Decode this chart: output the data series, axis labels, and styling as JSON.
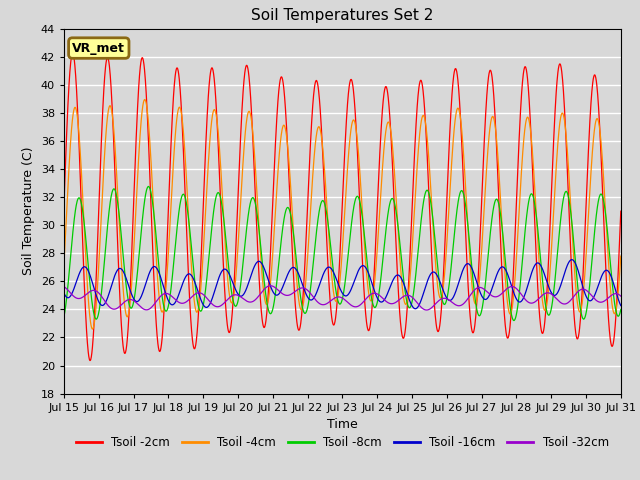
{
  "title": "Soil Temperatures Set 2",
  "xlabel": "Time",
  "ylabel": "Soil Temperature (C)",
  "ylim": [
    18,
    44
  ],
  "yticks": [
    18,
    20,
    22,
    24,
    26,
    28,
    30,
    32,
    34,
    36,
    38,
    40,
    42,
    44
  ],
  "bg_color": "#d8d8d8",
  "plot_bg_color": "#d8d8d8",
  "grid_color": "#ffffff",
  "annotation_text": "VR_met",
  "annotation_bg": "#ffff99",
  "annotation_border": "#8b6914",
  "series": [
    {
      "label": "Tsoil -2cm",
      "color": "#ff0000",
      "amplitude": 11.0,
      "mean": 31.5,
      "phase": 0.0,
      "phase2": 0.0
    },
    {
      "label": "Tsoil -4cm",
      "color": "#ff8c00",
      "amplitude": 8.0,
      "mean": 31.0,
      "phase": 0.07,
      "phase2": 0.0
    },
    {
      "label": "Tsoil -8cm",
      "color": "#00cc00",
      "amplitude": 4.5,
      "mean": 28.0,
      "phase": 0.18,
      "phase2": 0.0
    },
    {
      "label": "Tsoil -16cm",
      "color": "#0000cc",
      "amplitude": 1.3,
      "mean": 25.8,
      "phase": 0.35,
      "phase2": 0.0
    },
    {
      "label": "Tsoil -32cm",
      "color": "#9900cc",
      "amplitude": 0.45,
      "mean": 24.8,
      "phase": 0.65,
      "phase2": 0.0
    }
  ],
  "x_start": 15.0,
  "x_end": 31.0,
  "n_points": 2000,
  "xtick_positions": [
    15,
    16,
    17,
    18,
    19,
    20,
    21,
    22,
    23,
    24,
    25,
    26,
    27,
    28,
    29,
    30,
    31
  ],
  "xtick_labels": [
    "Jul 15",
    "Jul 16",
    "Jul 17",
    "Jul 18",
    "Jul 19",
    "Jul 20",
    "Jul 21",
    "Jul 22",
    "Jul 23",
    "Jul 24",
    "Jul 25",
    "Jul 26",
    "Jul 27",
    "Jul 28",
    "Jul 29",
    "Jul 30",
    "Jul 31"
  ],
  "legend_ncol": 5
}
